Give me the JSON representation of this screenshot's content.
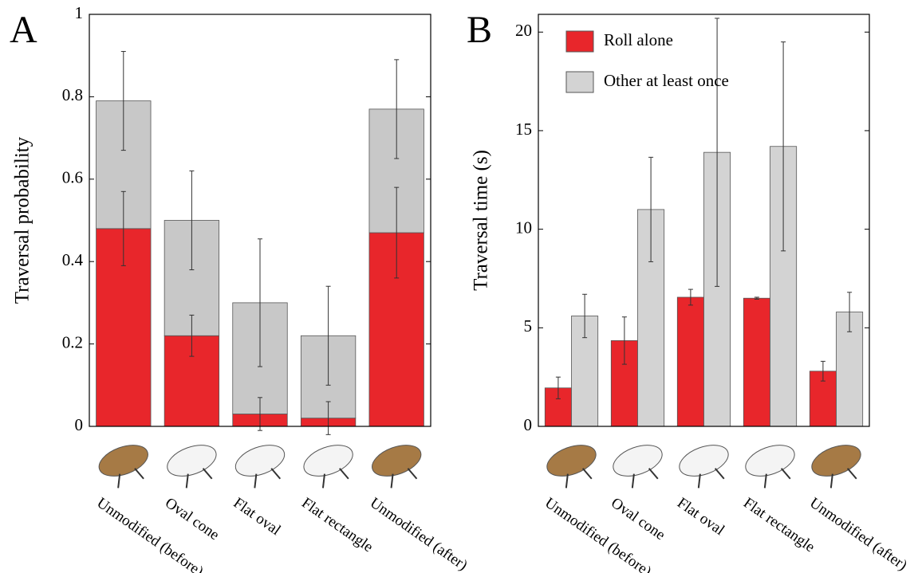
{
  "chart_data": [
    {
      "type": "stacked_bar",
      "panel_label": "A",
      "ylabel": "Traversal probability",
      "categories": [
        "Unmodified (before)",
        "Oval cone",
        "Flat oval",
        "Flat rectangle",
        "Unmodified (after)"
      ],
      "series": [
        {
          "color": "#e8262b",
          "values": [
            0.48,
            0.22,
            0.03,
            0.02,
            0.47
          ],
          "errors": [
            0.09,
            0.05,
            0.04,
            0.04,
            0.11
          ]
        },
        {
          "color": "#c8c8c8",
          "values": [
            0.31,
            0.28,
            0.27,
            0.2,
            0.3
          ],
          "errors": [
            0.12,
            0.12,
            0.155,
            0.12,
            0.12
          ]
        }
      ],
      "ylim": [
        0,
        1
      ],
      "yticks": [
        0,
        0.2,
        0.4,
        0.6,
        0.8,
        1
      ]
    },
    {
      "type": "grouped_bar",
      "panel_label": "B",
      "ylabel": "Traversal time (s)",
      "categories": [
        "Unmodified (before)",
        "Oval cone",
        "Flat oval",
        "Flat rectangle",
        "Unmodified (after)"
      ],
      "series": [
        {
          "name": "Roll alone",
          "color": "#e8262b",
          "values": [
            1.95,
            4.35,
            6.55,
            6.5,
            2.8
          ],
          "errors": [
            0.55,
            1.2,
            0.4,
            0.05,
            0.5
          ]
        },
        {
          "name": "Other at least once",
          "color": "#d3d3d3",
          "values": [
            5.6,
            11.0,
            13.9,
            14.2,
            5.8
          ],
          "errors": [
            1.1,
            2.65,
            6.8,
            5.3,
            1.0
          ]
        }
      ],
      "ylim": [
        0,
        20.9
      ],
      "yticks": [
        0,
        5,
        10,
        15,
        20
      ],
      "legend": "upper left"
    }
  ]
}
